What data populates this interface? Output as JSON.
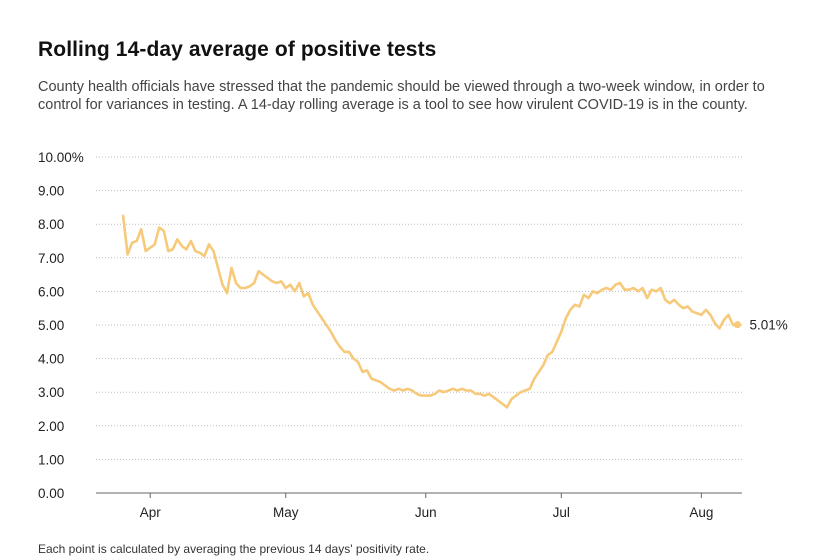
{
  "header": {
    "title": "Rolling 14-day average of positive tests",
    "subtitle": "County health officials have stressed that the pandemic should be viewed through a two-week window, in order to control for variances in testing. A 14-day rolling average is a tool to see how virulent COVID-19 is in the county."
  },
  "footer": {
    "note": "Each point is calculated by averaging the previous 14 days' positivity rate."
  },
  "colors": {
    "line": "#f7c97a",
    "grid": "#bbbbbb",
    "axis": "#666666",
    "text": "#222222"
  },
  "chart_data": {
    "type": "line",
    "title": "Rolling 14-day average of positive tests",
    "xlabel": "",
    "ylabel": "",
    "ylim": [
      0,
      10
    ],
    "y_ticks": [
      {
        "value": 10,
        "label": "10.00%"
      },
      {
        "value": 9,
        "label": "9.00"
      },
      {
        "value": 8,
        "label": "8.00"
      },
      {
        "value": 7,
        "label": "7.00"
      },
      {
        "value": 6,
        "label": "6.00"
      },
      {
        "value": 5,
        "label": "5.00"
      },
      {
        "value": 4,
        "label": "4.00"
      },
      {
        "value": 3,
        "label": "3.00"
      },
      {
        "value": 2,
        "label": "2.00"
      },
      {
        "value": 1,
        "label": "1.00"
      },
      {
        "value": 0,
        "label": "0.00"
      }
    ],
    "x_range": [
      "2020-03-20",
      "2020-08-10"
    ],
    "x_ticks": [
      {
        "date": "2020-04-01",
        "label": "Apr"
      },
      {
        "date": "2020-05-01",
        "label": "May"
      },
      {
        "date": "2020-06-01",
        "label": "Jun"
      },
      {
        "date": "2020-07-01",
        "label": "Jul"
      },
      {
        "date": "2020-08-01",
        "label": "Aug"
      }
    ],
    "grid": true,
    "end_label": "5.01%",
    "series": [
      {
        "x": [
          "2020-03-26",
          "2020-03-27",
          "2020-03-28",
          "2020-03-29",
          "2020-03-30",
          "2020-03-31",
          "2020-04-01",
          "2020-04-02",
          "2020-04-03",
          "2020-04-04",
          "2020-04-05",
          "2020-04-06",
          "2020-04-07",
          "2020-04-08",
          "2020-04-09",
          "2020-04-10",
          "2020-04-11",
          "2020-04-12",
          "2020-04-13",
          "2020-04-14",
          "2020-04-15",
          "2020-04-16",
          "2020-04-17",
          "2020-04-18",
          "2020-04-19",
          "2020-04-20",
          "2020-04-21",
          "2020-04-22",
          "2020-04-23",
          "2020-04-24",
          "2020-04-25",
          "2020-04-26",
          "2020-04-27",
          "2020-04-28",
          "2020-04-29",
          "2020-04-30",
          "2020-05-01",
          "2020-05-02",
          "2020-05-03",
          "2020-05-04",
          "2020-05-05",
          "2020-05-06",
          "2020-05-07",
          "2020-05-08",
          "2020-05-09",
          "2020-05-10",
          "2020-05-11",
          "2020-05-12",
          "2020-05-13",
          "2020-05-14",
          "2020-05-15",
          "2020-05-16",
          "2020-05-17",
          "2020-05-18",
          "2020-05-19",
          "2020-05-20",
          "2020-05-21",
          "2020-05-22",
          "2020-05-23",
          "2020-05-24",
          "2020-05-25",
          "2020-05-26",
          "2020-05-27",
          "2020-05-28",
          "2020-05-29",
          "2020-05-30",
          "2020-05-31",
          "2020-06-01",
          "2020-06-02",
          "2020-06-03",
          "2020-06-04",
          "2020-06-05",
          "2020-06-06",
          "2020-06-07",
          "2020-06-08",
          "2020-06-09",
          "2020-06-10",
          "2020-06-11",
          "2020-06-12",
          "2020-06-13",
          "2020-06-14",
          "2020-06-15",
          "2020-06-16",
          "2020-06-17",
          "2020-06-18",
          "2020-06-19",
          "2020-06-20",
          "2020-06-21",
          "2020-06-22",
          "2020-06-23",
          "2020-06-24",
          "2020-06-25",
          "2020-06-26",
          "2020-06-27",
          "2020-06-28",
          "2020-06-29",
          "2020-06-30",
          "2020-07-01",
          "2020-07-02",
          "2020-07-03",
          "2020-07-04",
          "2020-07-05",
          "2020-07-06",
          "2020-07-07",
          "2020-07-08",
          "2020-07-09",
          "2020-07-10",
          "2020-07-11",
          "2020-07-12",
          "2020-07-13",
          "2020-07-14",
          "2020-07-15",
          "2020-07-16",
          "2020-07-17",
          "2020-07-18",
          "2020-07-19",
          "2020-07-20",
          "2020-07-21",
          "2020-07-22",
          "2020-07-23",
          "2020-07-24",
          "2020-07-25",
          "2020-07-26",
          "2020-07-27",
          "2020-07-28",
          "2020-07-29",
          "2020-07-30",
          "2020-07-31",
          "2020-08-01",
          "2020-08-02",
          "2020-08-03",
          "2020-08-04",
          "2020-08-05",
          "2020-08-06",
          "2020-08-07",
          "2020-08-08",
          "2020-08-09"
        ],
        "values": [
          8.25,
          7.1,
          7.45,
          7.5,
          7.85,
          7.2,
          7.3,
          7.4,
          7.9,
          7.8,
          7.2,
          7.25,
          7.55,
          7.35,
          7.25,
          7.5,
          7.2,
          7.15,
          7.05,
          7.4,
          7.2,
          6.7,
          6.2,
          5.95,
          6.7,
          6.25,
          6.1,
          6.1,
          6.15,
          6.25,
          6.6,
          6.5,
          6.4,
          6.3,
          6.25,
          6.3,
          6.1,
          6.2,
          6.0,
          6.25,
          5.85,
          5.95,
          5.6,
          5.4,
          5.2,
          5.0,
          4.8,
          4.55,
          4.35,
          4.2,
          4.2,
          4.0,
          3.9,
          3.6,
          3.65,
          3.4,
          3.35,
          3.3,
          3.2,
          3.1,
          3.05,
          3.1,
          3.05,
          3.1,
          3.05,
          2.95,
          2.9,
          2.9,
          2.9,
          2.95,
          3.05,
          3.0,
          3.05,
          3.1,
          3.05,
          3.1,
          3.05,
          3.05,
          2.95,
          2.95,
          2.9,
          2.95,
          2.85,
          2.75,
          2.65,
          2.55,
          2.8,
          2.9,
          3.0,
          3.05,
          3.1,
          3.4,
          3.6,
          3.8,
          4.1,
          4.2,
          4.5,
          4.8,
          5.2,
          5.45,
          5.6,
          5.55,
          5.9,
          5.8,
          6.0,
          5.95,
          6.05,
          6.1,
          6.05,
          6.2,
          6.25,
          6.05,
          6.05,
          6.1,
          6.0,
          6.1,
          5.8,
          6.05,
          6.0,
          6.1,
          5.75,
          5.65,
          5.75,
          5.6,
          5.5,
          5.55,
          5.4,
          5.35,
          5.3,
          5.45,
          5.3,
          5.05,
          4.9,
          5.15,
          5.3,
          5.0,
          5.01
        ]
      }
    ]
  }
}
